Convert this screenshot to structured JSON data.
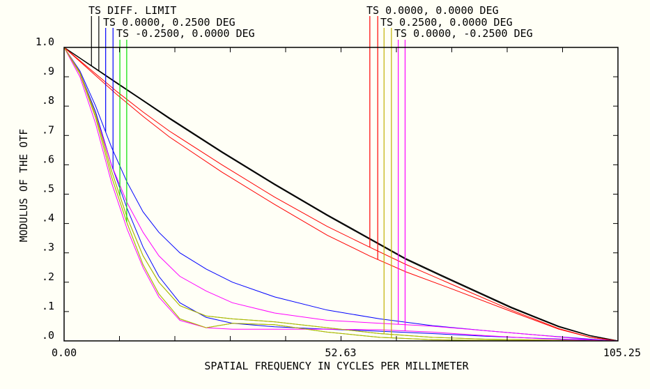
{
  "chart_data": {
    "type": "line",
    "title": "",
    "xlabel": "SPATIAL FREQUENCY IN CYCLES PER MILLIMETER",
    "ylabel": "MODULUS OF THE OTF",
    "xlim": [
      0,
      105.25
    ],
    "ylim": [
      0,
      1.0
    ],
    "x_tick_labels": [
      "0.00",
      "52.63",
      "105.25"
    ],
    "x_minor_ticks": 10,
    "y_tick_labels": [
      ".0",
      ".1",
      ".2",
      ".3",
      ".4",
      ".5",
      ".6",
      ".7",
      ".8",
      ".9",
      "1.0"
    ],
    "grid": false,
    "legend": [
      {
        "label": "TS DIFF. LIMIT",
        "color": "#000000",
        "placement": "top-left",
        "marker_x": [
          5.2,
          6.6
        ]
      },
      {
        "label": "TS 0.0000, 0.2500 DEG",
        "color": "#0000ff",
        "placement": "top-left",
        "marker_x": [
          7.9,
          9.3
        ]
      },
      {
        "label": "TS -0.2500, 0.0000 DEG",
        "color": "#00e000",
        "placement": "top-left",
        "marker_x": [
          10.6,
          11.9
        ]
      },
      {
        "label": "TS 0.0000, 0.0000 DEG",
        "color": "#ff0000",
        "placement": "top-right",
        "marker_x": [
          58.1,
          59.6
        ]
      },
      {
        "label": "TS 0.2500, 0.0000 DEG",
        "color": "#c0b000",
        "placement": "top-right",
        "marker_x": [
          60.8,
          62.2
        ]
      },
      {
        "label": "TS 0.0000, -0.2500 DEG",
        "color": "#ff00ff",
        "placement": "top-right",
        "marker_x": [
          63.5,
          64.8
        ]
      }
    ],
    "series": [
      {
        "name": "DIFF. LIMIT T",
        "color": "#000000",
        "x": [
          0,
          5,
          10,
          15,
          20,
          30,
          40,
          50,
          58,
          65,
          74,
          85,
          94,
          100,
          105.25
        ],
        "y": [
          1.0,
          0.94,
          0.88,
          0.82,
          0.76,
          0.645,
          0.535,
          0.43,
          0.35,
          0.28,
          0.205,
          0.115,
          0.05,
          0.018,
          0.0
        ]
      },
      {
        "name": "DIFF. LIMIT S",
        "color": "#000000",
        "x": [
          0,
          5,
          10,
          15,
          20,
          30,
          40,
          50,
          58,
          65,
          74,
          85,
          94,
          100,
          105.25
        ],
        "y": [
          1.0,
          0.939,
          0.878,
          0.818,
          0.757,
          0.642,
          0.532,
          0.427,
          0.347,
          0.277,
          0.202,
          0.112,
          0.048,
          0.017,
          0.0
        ]
      },
      {
        "name": "0.0000,0.0000 T",
        "color": "#ff0000",
        "x": [
          0,
          5,
          10,
          15,
          20,
          30,
          40,
          50,
          58,
          65,
          74,
          85,
          94,
          100,
          105.25
        ],
        "y": [
          1.0,
          0.925,
          0.85,
          0.78,
          0.715,
          0.6,
          0.49,
          0.39,
          0.32,
          0.26,
          0.19,
          0.105,
          0.042,
          0.012,
          0.0
        ]
      },
      {
        "name": "0.0000,0.0000 S",
        "color": "#ff0000",
        "x": [
          0,
          5,
          10,
          15,
          20,
          30,
          40,
          50,
          58,
          65,
          74,
          85,
          94,
          100,
          105.25
        ],
        "y": [
          1.0,
          0.92,
          0.84,
          0.765,
          0.695,
          0.575,
          0.465,
          0.36,
          0.29,
          0.235,
          0.175,
          0.1,
          0.04,
          0.012,
          0.0
        ]
      },
      {
        "name": "0.0000,0.2500 T",
        "color": "#0000ff",
        "x": [
          0,
          3,
          6,
          9,
          12,
          15,
          18,
          22,
          27,
          32,
          40,
          50,
          60,
          70,
          80,
          90,
          100,
          105.25
        ],
        "y": [
          1.0,
          0.92,
          0.8,
          0.66,
          0.54,
          0.44,
          0.37,
          0.3,
          0.245,
          0.2,
          0.15,
          0.105,
          0.075,
          0.052,
          0.035,
          0.02,
          0.006,
          0.0
        ]
      },
      {
        "name": "0.0000,0.2500 S",
        "color": "#0000ff",
        "x": [
          0,
          3,
          6,
          9,
          12,
          15,
          18,
          22,
          27,
          32,
          40,
          50,
          60,
          70,
          80,
          90,
          100,
          105.25
        ],
        "y": [
          1.0,
          0.915,
          0.78,
          0.6,
          0.45,
          0.32,
          0.22,
          0.13,
          0.08,
          0.06,
          0.048,
          0.04,
          0.033,
          0.025,
          0.016,
          0.009,
          0.003,
          0.0
        ]
      },
      {
        "name": "0.0000,-0.2500 T",
        "color": "#ff00ff",
        "x": [
          0,
          3,
          6,
          9,
          12,
          15,
          18,
          22,
          27,
          32,
          40,
          50,
          60,
          70,
          80,
          90,
          100,
          105.25
        ],
        "y": [
          1.0,
          0.915,
          0.77,
          0.6,
          0.47,
          0.37,
          0.29,
          0.22,
          0.17,
          0.13,
          0.095,
          0.07,
          0.06,
          0.05,
          0.035,
          0.02,
          0.004,
          0.0
        ]
      },
      {
        "name": "0.0000,-0.2500 S",
        "color": "#ff00ff",
        "x": [
          0,
          3,
          6,
          9,
          12,
          15,
          18,
          22,
          27,
          32,
          40,
          50,
          60,
          70,
          80,
          90,
          100,
          105.25
        ],
        "y": [
          1.0,
          0.9,
          0.74,
          0.54,
          0.38,
          0.25,
          0.15,
          0.07,
          0.045,
          0.04,
          0.04,
          0.04,
          0.038,
          0.03,
          0.018,
          0.008,
          0.002,
          0.0
        ]
      },
      {
        "name": "0.2500,0.0000 T",
        "color": "#c0b000",
        "x": [
          0,
          3,
          6,
          9,
          12,
          15,
          18,
          22,
          27,
          32,
          40,
          50,
          60,
          70,
          80,
          90,
          100,
          105.25
        ],
        "y": [
          1.0,
          0.915,
          0.77,
          0.58,
          0.42,
          0.29,
          0.2,
          0.12,
          0.085,
          0.075,
          0.065,
          0.045,
          0.025,
          0.012,
          0.006,
          0.003,
          0.001,
          0.0
        ]
      },
      {
        "name": "0.2500,0.0000 S",
        "color": "#c0b000",
        "x": [
          0,
          3,
          6,
          9,
          12,
          15,
          18,
          22,
          27,
          32,
          40,
          50,
          60,
          70,
          80,
          90,
          100,
          105.25
        ],
        "y": [
          1.0,
          0.91,
          0.76,
          0.56,
          0.4,
          0.26,
          0.16,
          0.075,
          0.045,
          0.06,
          0.055,
          0.03,
          0.012,
          0.004,
          0.002,
          0.001,
          0.0,
          0.0
        ]
      },
      {
        "name": "-0.2500,0.0000 T",
        "color": "#00e000",
        "x": [
          0,
          3,
          6,
          9,
          12,
          15,
          18,
          22,
          27,
          32,
          40,
          50,
          60,
          70,
          80,
          90,
          100,
          105.25
        ],
        "y": [
          1.0,
          0.915,
          0.77,
          0.58,
          0.42,
          0.29,
          0.2,
          0.12,
          0.085,
          0.075,
          0.065,
          0.045,
          0.025,
          0.012,
          0.006,
          0.003,
          0.001,
          0.0
        ]
      },
      {
        "name": "-0.2500,0.0000 S",
        "color": "#00e000",
        "x": [
          0,
          3,
          6,
          9,
          12,
          15,
          18,
          22,
          27,
          32,
          40,
          50,
          60,
          70,
          80,
          90,
          100,
          105.25
        ],
        "y": [
          1.0,
          0.91,
          0.76,
          0.56,
          0.4,
          0.26,
          0.16,
          0.075,
          0.045,
          0.06,
          0.055,
          0.03,
          0.012,
          0.004,
          0.002,
          0.001,
          0.0,
          0.0
        ]
      }
    ]
  }
}
